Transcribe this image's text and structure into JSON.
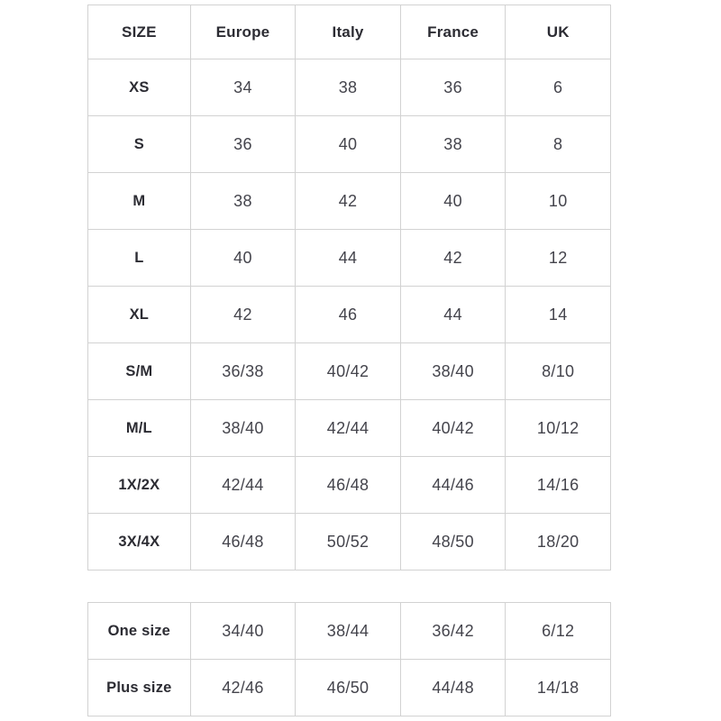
{
  "theme": {
    "border_color": "#d2d2d2",
    "header_text_color": "#2c2c33",
    "cell_text_color": "#44444c",
    "background_color": "#ffffff"
  },
  "chart_data": [
    {
      "type": "table",
      "columns": [
        "SIZE",
        "Europe",
        "Italy",
        "France",
        "UK"
      ],
      "rows": [
        [
          "XS",
          "34",
          "38",
          "36",
          "6"
        ],
        [
          "S",
          "36",
          "40",
          "38",
          "8"
        ],
        [
          "M",
          "38",
          "42",
          "40",
          "10"
        ],
        [
          "L",
          "40",
          "44",
          "42",
          "12"
        ],
        [
          "XL",
          "42",
          "46",
          "44",
          "14"
        ],
        [
          "S/M",
          "36/38",
          "40/42",
          "38/40",
          "8/10"
        ],
        [
          "M/L",
          "38/40",
          "42/44",
          "40/42",
          "10/12"
        ],
        [
          "1X/2X",
          "42/44",
          "46/48",
          "44/46",
          "14/16"
        ],
        [
          "3X/4X",
          "46/48",
          "50/52",
          "48/50",
          "18/20"
        ]
      ]
    },
    {
      "type": "table",
      "columns": [],
      "rows": [
        [
          "One size",
          "34/40",
          "38/44",
          "36/42",
          "6/12"
        ],
        [
          "Plus size",
          "42/46",
          "46/50",
          "44/48",
          "14/18"
        ]
      ]
    }
  ]
}
